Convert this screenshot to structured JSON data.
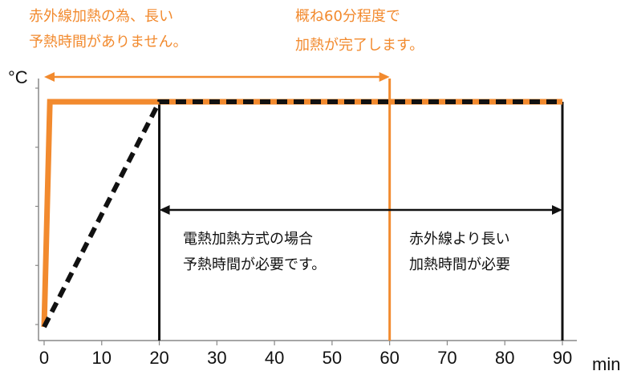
{
  "chart_data": {
    "type": "line",
    "y_unit": "°C",
    "x_unit": "min",
    "x_ticks": [
      "0",
      "10",
      "20",
      "30",
      "40",
      "50",
      "60",
      "70",
      "80",
      "90"
    ],
    "xlim": [
      0,
      90
    ],
    "y_tick_count": 5,
    "series": [
      {
        "style": "solid",
        "color": "#f28a2e",
        "points": [
          [
            0,
            0.05
          ],
          [
            1,
            0.95
          ],
          [
            90,
            0.95
          ]
        ]
      },
      {
        "style": "dashed",
        "color": "#111111",
        "points": [
          [
            0,
            0.05
          ],
          [
            20,
            0.95
          ],
          [
            90,
            0.95
          ]
        ]
      }
    ],
    "ranges": [
      {
        "from": 0,
        "to": 60,
        "color": "#f28a2e"
      },
      {
        "from": 20,
        "to": 90,
        "color": "#111111"
      }
    ],
    "reference_lines": [
      {
        "x": 20,
        "color": "#111111"
      },
      {
        "x": 60,
        "color": "#f28a2e"
      },
      {
        "x": 90,
        "color": "#111111"
      }
    ],
    "annotations": {
      "infrared_line1": "赤外線加熱の為、長い",
      "infrared_line2": "予熱時間がありません。",
      "complete_line1": "概ね60分程度で",
      "complete_line2": "加熱が完了します。",
      "electric_line1": "電熱加熱方式の場合",
      "electric_line2": "予熱時間が必要です。",
      "longer_line1": "赤外線より長い",
      "longer_line2": "加熱時間が必要"
    }
  }
}
